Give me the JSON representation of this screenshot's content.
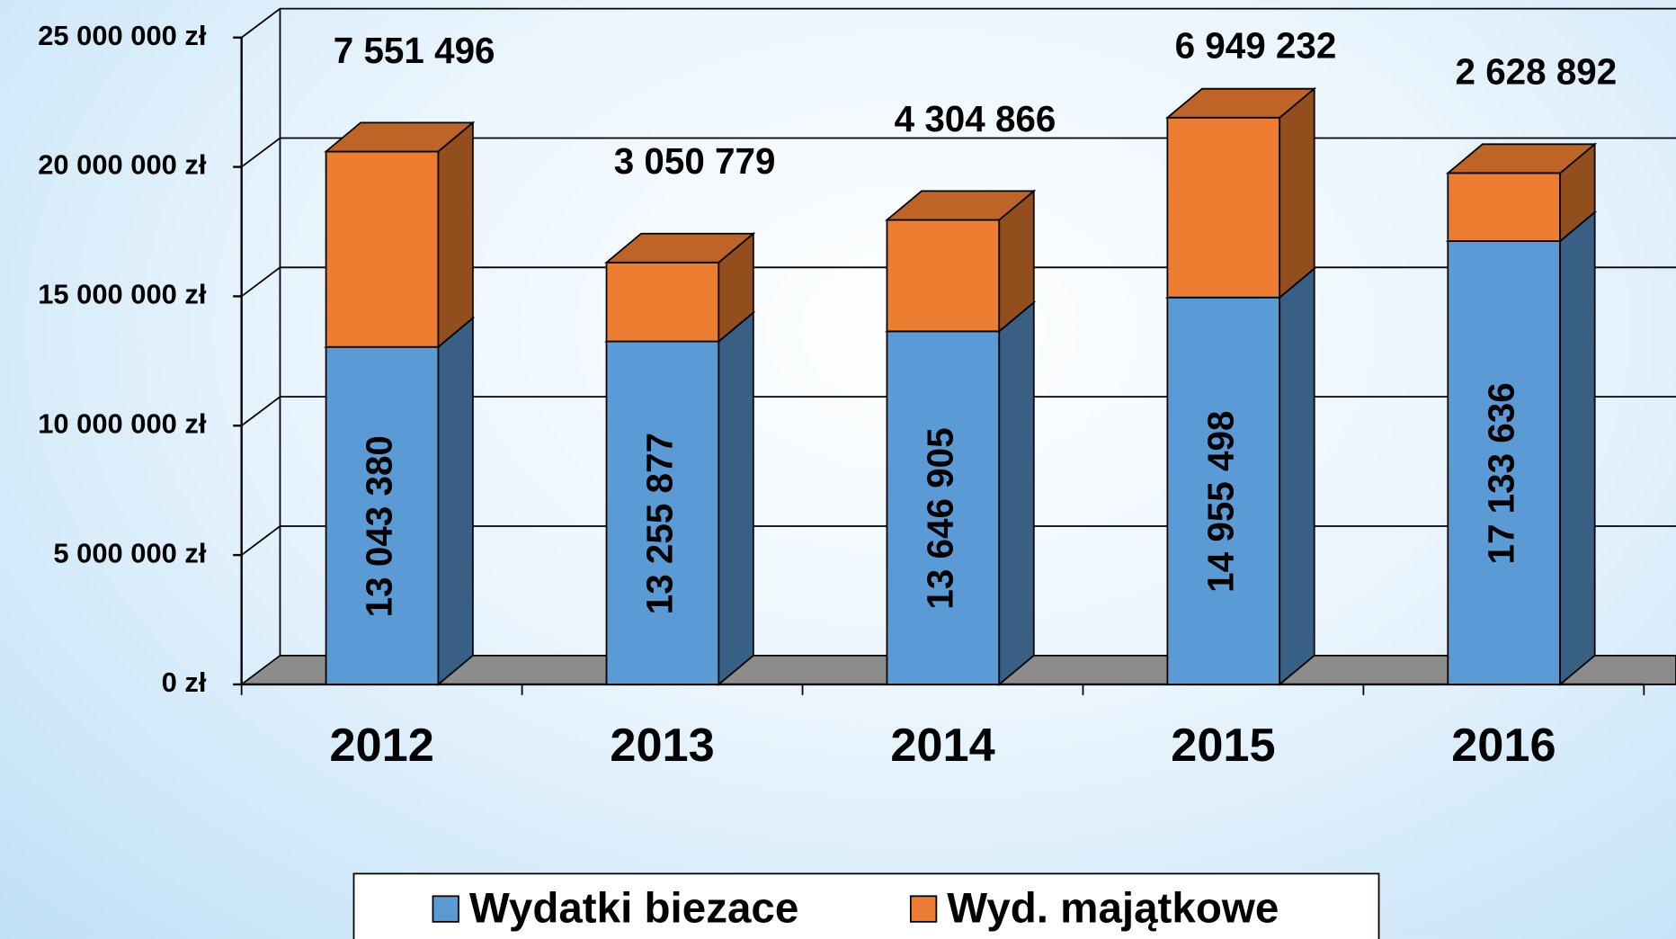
{
  "chart_data": {
    "type": "bar3d_stacked",
    "categories": [
      "2012",
      "2013",
      "2014",
      "2015",
      "2016"
    ],
    "series": [
      {
        "name": "Wydatki biezace",
        "color": "#5b9bd5",
        "values": [
          13043380,
          13255877,
          13646905,
          14955498,
          17133636
        ],
        "value_labels": [
          "13 043 380",
          "13 255 877",
          "13 646 905",
          "14 955 498",
          "17 133 636"
        ]
      },
      {
        "name": "Wyd. majątkowe",
        "color": "#ed7d31",
        "values": [
          7551496,
          3050779,
          4304866,
          6949232,
          2628892
        ],
        "value_labels": [
          "7 551 496",
          "3 050 779",
          "4 304 866",
          "6 949 232",
          "2 628 892"
        ]
      }
    ],
    "ylim": [
      0,
      25000000
    ],
    "yticks": [
      {
        "value": 0,
        "label": "0 zł"
      },
      {
        "value": 5000000,
        "label": "5 000 000 zł"
      },
      {
        "value": 10000000,
        "label": "10 000 000 zł"
      },
      {
        "value": 15000000,
        "label": "15 000 000 zł"
      },
      {
        "value": 20000000,
        "label": "20 000 000 zł"
      },
      {
        "value": 25000000,
        "label": "25 000 000 zł"
      }
    ],
    "grid": true,
    "legend": "bottom"
  }
}
